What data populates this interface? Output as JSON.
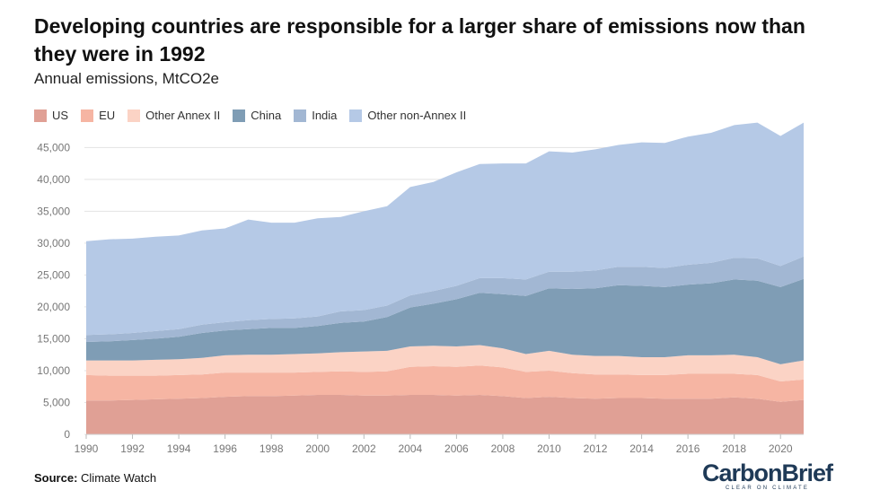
{
  "chart_data": {
    "type": "area",
    "stacked": true,
    "title": "Developing countries are responsible for a larger share of emissions now than they were in 1992",
    "subtitle": "Annual emissions, MtCO2e",
    "ylim": [
      0,
      48000
    ],
    "yticks": [
      0,
      5000,
      10000,
      15000,
      20000,
      25000,
      30000,
      35000,
      40000,
      45000
    ],
    "ytick_labels": [
      "0",
      "5,000",
      "10,000",
      "15,000",
      "20,000",
      "25,000",
      "30,000",
      "35,000",
      "40,000",
      "45,000"
    ],
    "xticks": [
      1990,
      1992,
      1994,
      1996,
      1998,
      2000,
      2002,
      2004,
      2006,
      2008,
      2010,
      2012,
      2014,
      2016,
      2018,
      2020
    ],
    "xtick_labels": [
      "1990",
      "1992",
      "1994",
      "1996",
      "1998",
      "2000",
      "2002",
      "2004",
      "2006",
      "2008",
      "2010",
      "2012",
      "2014",
      "2016",
      "2018",
      "2020"
    ],
    "x": [
      1990,
      1991,
      1992,
      1993,
      1994,
      1995,
      1996,
      1997,
      1998,
      1999,
      2000,
      2001,
      2002,
      2003,
      2004,
      2005,
      2006,
      2007,
      2008,
      2009,
      2010,
      2011,
      2012,
      2013,
      2014,
      2015,
      2016,
      2017,
      2018,
      2019,
      2020,
      2021
    ],
    "series": [
      {
        "name": "US",
        "color": "#e0a095",
        "values": [
          5300,
          5300,
          5400,
          5500,
          5600,
          5700,
          5900,
          6000,
          6000,
          6100,
          6200,
          6200,
          6100,
          6100,
          6200,
          6200,
          6100,
          6200,
          6000,
          5700,
          5900,
          5700,
          5600,
          5700,
          5700,
          5600,
          5600,
          5600,
          5800,
          5600,
          5100,
          5400
        ]
      },
      {
        "name": "EU",
        "color": "#f6b5a3",
        "values": [
          4000,
          3900,
          3800,
          3700,
          3700,
          3700,
          3800,
          3700,
          3700,
          3600,
          3600,
          3700,
          3700,
          3800,
          4400,
          4500,
          4500,
          4600,
          4500,
          4100,
          4100,
          3900,
          3800,
          3700,
          3600,
          3700,
          3900,
          3900,
          3700,
          3700,
          3200,
          3200
        ]
      },
      {
        "name": "Other Annex II",
        "color": "#fbd3c5",
        "values": [
          2300,
          2400,
          2400,
          2500,
          2500,
          2600,
          2700,
          2800,
          2800,
          2900,
          2900,
          3000,
          3200,
          3200,
          3200,
          3200,
          3200,
          3200,
          3000,
          2800,
          3100,
          2900,
          2900,
          2900,
          2800,
          2800,
          2900,
          2900,
          3000,
          2800,
          2700,
          3000
        ]
      },
      {
        "name": "China",
        "color": "#7f9db5",
        "values": [
          2900,
          3000,
          3200,
          3300,
          3500,
          3900,
          3900,
          4000,
          4200,
          4100,
          4300,
          4600,
          4700,
          5300,
          6100,
          6600,
          7400,
          8200,
          8500,
          9100,
          9800,
          10300,
          10600,
          11100,
          11200,
          11000,
          11100,
          11300,
          11800,
          12000,
          12100,
          12800
        ]
      },
      {
        "name": "India",
        "color": "#a2b7d3",
        "values": [
          1100,
          1100,
          1100,
          1200,
          1200,
          1300,
          1300,
          1400,
          1400,
          1500,
          1500,
          1800,
          1800,
          1800,
          1900,
          2000,
          2100,
          2300,
          2500,
          2600,
          2600,
          2700,
          2800,
          2900,
          3000,
          3000,
          3100,
          3200,
          3400,
          3500,
          3300,
          3500
        ]
      },
      {
        "name": "Other non-Annex II",
        "color": "#b5c9e6",
        "values": [
          14700,
          14900,
          14800,
          14800,
          14700,
          14800,
          14700,
          15800,
          15100,
          15000,
          15400,
          14800,
          15500,
          15600,
          17000,
          17100,
          17800,
          17900,
          18000,
          18200,
          18900,
          18700,
          19000,
          19100,
          19500,
          19600,
          20100,
          20400,
          20800,
          21300,
          20400,
          21000
        ]
      }
    ]
  },
  "source": {
    "label": "Source:",
    "text": "Climate Watch"
  },
  "logo": {
    "main": "CarbonBrief",
    "tagline": "CLEAR ON CLIMATE"
  }
}
